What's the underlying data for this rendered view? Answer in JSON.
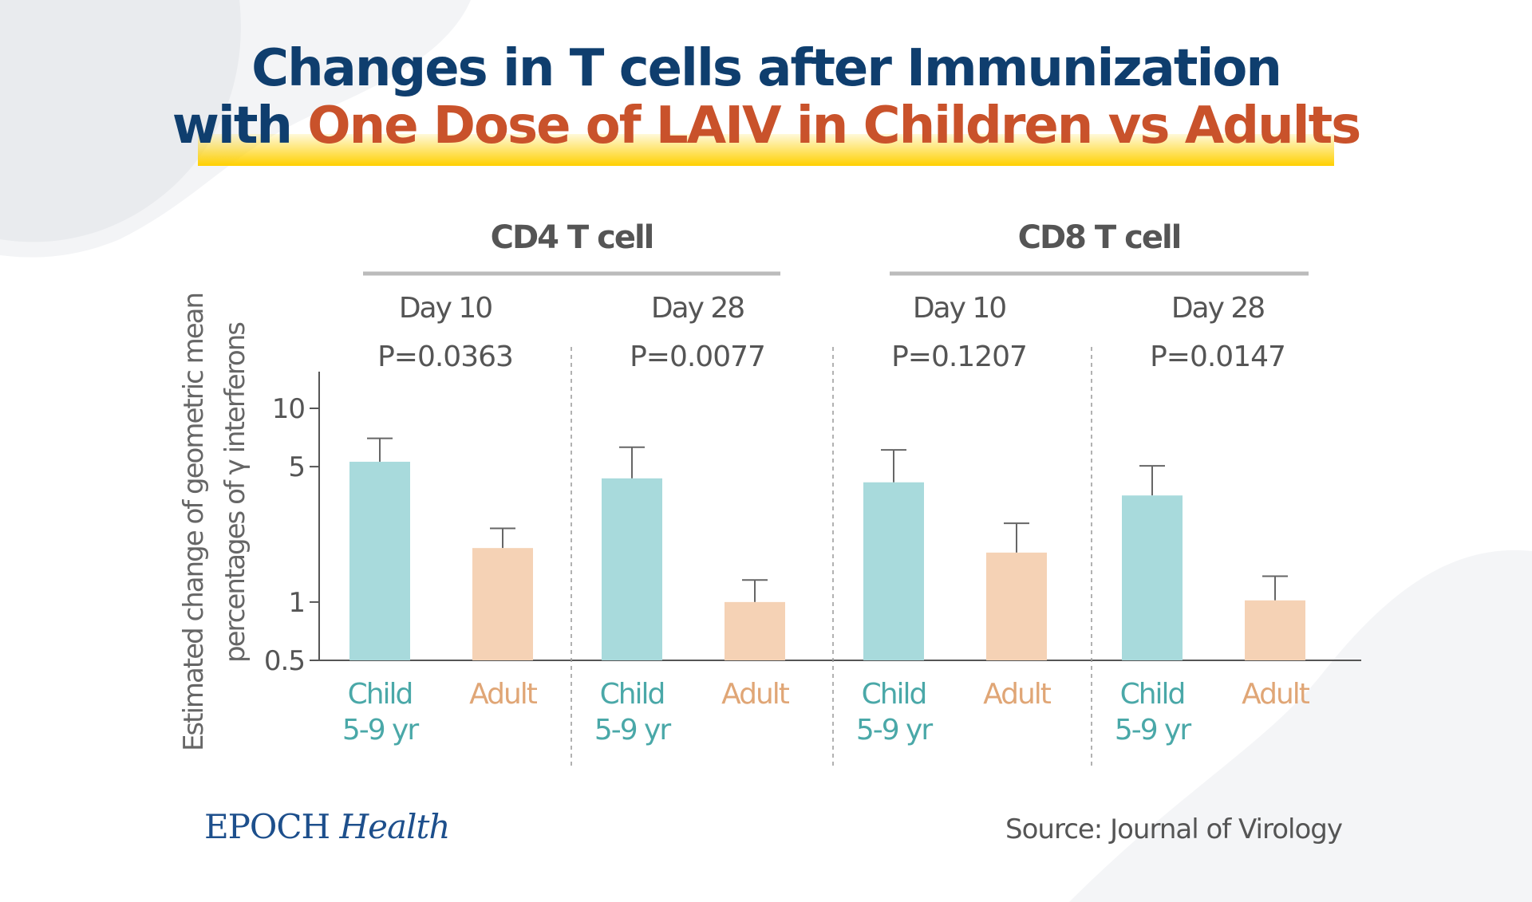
{
  "title": {
    "line1": "Changes in T cells after Immunization",
    "line2_navy": "with",
    "line2_orange": "One Dose of LAIV in Children vs Adults"
  },
  "colors": {
    "navy": "#0f3e6e",
    "orange": "#c9522b",
    "highlight": "#ffd000",
    "child": "#a8dadc",
    "adult": "#f5d2b5",
    "child_text": "#4aa8a8",
    "adult_text": "#e0a676",
    "axis": "#555555",
    "group_line": "#bbbbbb"
  },
  "chart_data": {
    "type": "bar",
    "ylabel_line1": "Estimated change of geometric mean",
    "ylabel_line2": "percentages of γ interferons",
    "yscale": "log",
    "ylim": [
      0.5,
      15
    ],
    "yticks": [
      {
        "value": 0.5,
        "label": "0.5"
      },
      {
        "value": 1,
        "label": "1"
      },
      {
        "value": 5,
        "label": "5"
      },
      {
        "value": 10,
        "label": "10"
      }
    ],
    "groups": [
      {
        "label": "CD4 T cell",
        "panels": [
          0,
          1
        ]
      },
      {
        "label": "CD8 T cell",
        "panels": [
          2,
          3
        ]
      }
    ],
    "category_labels": {
      "child_line1": "Child",
      "child_line2": "5-9 yr",
      "adult": "Adult"
    },
    "panels": [
      {
        "day": "Day 10",
        "p_value": "P=0.0363",
        "child": {
          "value": 5.3,
          "upper": 7.0
        },
        "adult": {
          "value": 1.9,
          "upper": 2.4
        }
      },
      {
        "day": "Day 28",
        "p_value": "P=0.0077",
        "child": {
          "value": 4.35,
          "upper": 6.3
        },
        "adult": {
          "value": 1.0,
          "upper": 1.3
        }
      },
      {
        "day": "Day 10",
        "p_value": "P=0.1207",
        "child": {
          "value": 4.15,
          "upper": 6.1
        },
        "adult": {
          "value": 1.8,
          "upper": 2.55
        }
      },
      {
        "day": "Day 28",
        "p_value": "P=0.0147",
        "child": {
          "value": 3.55,
          "upper": 5.05
        },
        "adult": {
          "value": 1.02,
          "upper": 1.36
        }
      }
    ],
    "grid": false
  },
  "footer": {
    "logo_epoch": "EPOCH",
    "logo_health": "Health",
    "source": "Source: Journal of Virology"
  }
}
